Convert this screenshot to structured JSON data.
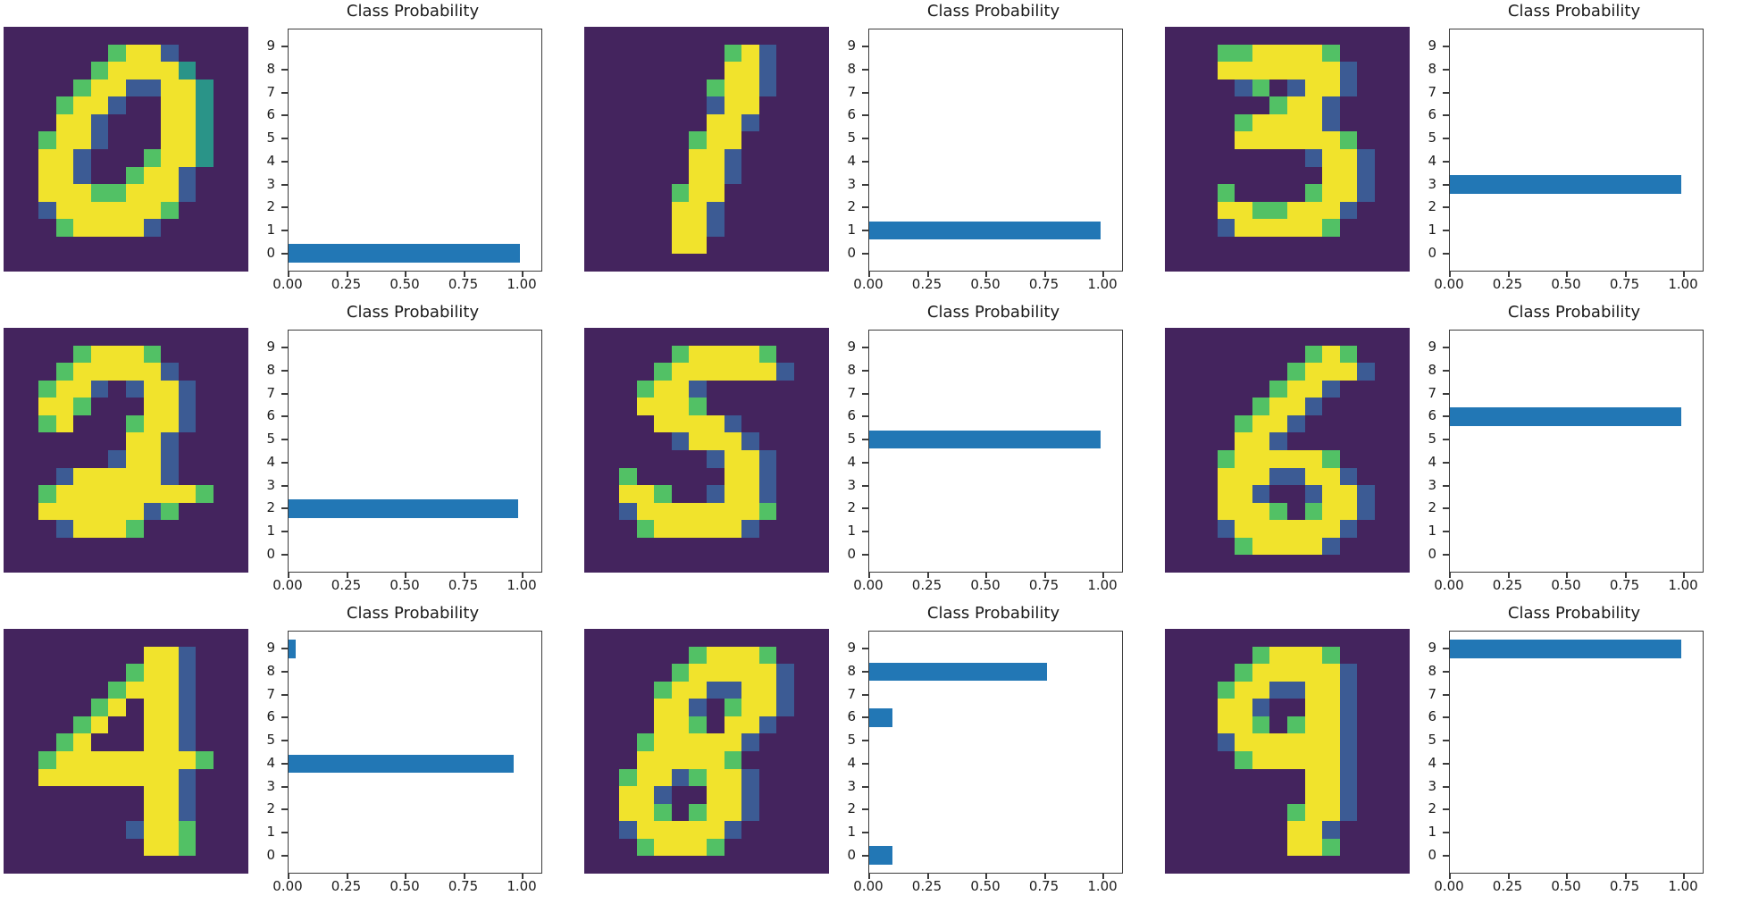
{
  "figure": {
    "background": "#ffffff",
    "bar_color": "#2277b5",
    "spine_color": "#3c3c3c",
    "text_color": "#1b1b1b",
    "digit_palette": {
      ".": "#44245e",
      "y": "#f1e32c",
      "g": "#52c165",
      "t": "#2a9488",
      "b": "#3c5b94"
    }
  },
  "axes": {
    "title": "Class Probability",
    "yticks": [
      "9",
      "8",
      "7",
      "6",
      "5",
      "4",
      "3",
      "2",
      "1",
      "0"
    ],
    "xtick_labels": [
      "0.00",
      "0.25",
      "0.50",
      "0.75",
      "1.00"
    ],
    "xtick_values": [
      0,
      0.25,
      0.5,
      0.75,
      1.0
    ],
    "xlim": [
      0,
      1.08
    ],
    "ylim": [
      -0.75,
      9.75
    ],
    "grid": false,
    "legend": "none"
  },
  "chart_data": [
    {
      "type": "barh",
      "title": "Class Probability",
      "digit": "0",
      "categories": [
        0,
        1,
        2,
        3,
        4,
        5,
        6,
        7,
        8,
        9
      ],
      "values": [
        0.99,
        0,
        0,
        0,
        0,
        0,
        0,
        0,
        0,
        0
      ],
      "bitmap": [
        "..............",
        "......gyyb....",
        ".....gyyyyt...",
        "....gyybbyyt..",
        "...gyyb..yyt..",
        "...yyb...yyt..",
        "..gyyb...yyt..",
        "..yyb...gyyt..",
        "..yyb..gyyb...",
        "..yyyggyyyb...",
        "..byyyyyyg....",
        "...gyyyyb.....",
        "..............",
        ".............."
      ]
    },
    {
      "type": "barh",
      "title": "Class Probability",
      "digit": "1",
      "categories": [
        0,
        1,
        2,
        3,
        4,
        5,
        6,
        7,
        8,
        9
      ],
      "values": [
        0,
        0.99,
        0,
        0,
        0,
        0,
        0,
        0,
        0,
        0
      ],
      "bitmap": [
        "..............",
        "........gyb...",
        "........yyb...",
        ".......gyyb...",
        ".......byy....",
        ".......yyb....",
        "......gyy.....",
        "......yyb.....",
        "......yyb.....",
        ".....gyy......",
        ".....yyb......",
        ".....yyb......",
        ".....yy.......",
        ".............."
      ]
    },
    {
      "type": "barh",
      "title": "Class Probability",
      "digit": "3",
      "categories": [
        0,
        1,
        2,
        3,
        4,
        5,
        6,
        7,
        8,
        9
      ],
      "values": [
        0,
        0,
        0,
        0.99,
        0,
        0,
        0,
        0,
        0,
        0
      ],
      "bitmap": [
        "..............",
        "...ggyyyyg....",
        "...yyyyyyyb...",
        "....bg.byyb...",
        "......gyyb....",
        "....gyyyyb....",
        "....yyyyyyg...",
        "........byyb..",
        ".........yyb..",
        "...g....gyyb..",
        "...yyggyyyb...",
        "...byyyyyg....",
        "..............",
        ".............."
      ]
    },
    {
      "type": "barh",
      "title": "Class Probability",
      "digit": "2",
      "categories": [
        0,
        1,
        2,
        3,
        4,
        5,
        6,
        7,
        8,
        9
      ],
      "values": [
        0,
        0,
        0.98,
        0,
        0,
        0,
        0,
        0,
        0,
        0
      ],
      "bitmap": [
        "..............",
        "....gyyyg.....",
        "...gyyyyyb....",
        "..gyyb.byyb...",
        "..yyg...yyb...",
        "..gy...gyyb...",
        ".......yyb....",
        "......byyb....",
        "...byyyyyb....",
        "..gyyyyyyyyg..",
        "..yyyyyybg....",
        "...byyyg......",
        "..............",
        ".............."
      ]
    },
    {
      "type": "barh",
      "title": "Class Probability",
      "digit": "5",
      "categories": [
        0,
        1,
        2,
        3,
        4,
        5,
        6,
        7,
        8,
        9
      ],
      "values": [
        0,
        0,
        0,
        0,
        0,
        0.99,
        0,
        0,
        0,
        0
      ],
      "bitmap": [
        "..............",
        ".....gyyyyg...",
        "....gyyyyyyb..",
        "...gyyb.......",
        "...yyyg.......",
        "....yyyyb.....",
        ".....byyyb....",
        ".......byyb...",
        "..g.....yyb...",
        "..yyg..byyb...",
        "..byyyyyyyg...",
        "...gyyyyyb....",
        "..............",
        ".............."
      ]
    },
    {
      "type": "barh",
      "title": "Class Probability",
      "digit": "6",
      "categories": [
        0,
        1,
        2,
        3,
        4,
        5,
        6,
        7,
        8,
        9
      ],
      "values": [
        0,
        0,
        0,
        0,
        0,
        0,
        0.99,
        0,
        0,
        0
      ],
      "bitmap": [
        "..............",
        "........gyg...",
        ".......gyyyb..",
        "......gyyb....",
        ".....gyyb.....",
        "....gyyb......",
        "....yyb.......",
        "...gyyyyyg....",
        "...yyybbyyb...",
        "...yyb..byyb..",
        "...yyyg.gyyb..",
        "...byyyyyyb...",
        "....gyyyyb....",
        ".............."
      ]
    },
    {
      "type": "barh",
      "title": "Class Probability",
      "digit": "4",
      "categories": [
        0,
        1,
        2,
        3,
        4,
        5,
        6,
        7,
        8,
        9
      ],
      "values": [
        0,
        0,
        0,
        0,
        0.96,
        0,
        0,
        0,
        0,
        0.03
      ],
      "bitmap": [
        "..............",
        "........yyb...",
        ".......gyyb...",
        "......gyyyb...",
        ".....gy.yyb...",
        "....gy..yyb...",
        "...gy...yyb...",
        "..gyyyyyyyyg..",
        "..yyyyyyyyb...",
        "........yyb...",
        "........yyb...",
        ".......byyg...",
        "........yyg...",
        ".............."
      ]
    },
    {
      "type": "barh",
      "title": "Class Probability",
      "digit": "8",
      "categories": [
        0,
        1,
        2,
        3,
        4,
        5,
        6,
        7,
        8,
        9
      ],
      "values": [
        0.1,
        0,
        0,
        0,
        0,
        0,
        0.1,
        0,
        0.76,
        0
      ],
      "bitmap": [
        "..............",
        "......gyyyg...",
        ".....gyyyyyb..",
        "....gyybbyyb..",
        "....yyb.gyyb..",
        "....yyg.yyb...",
        "...gyyyyyb....",
        "...yyyyyg.....",
        "..gyybgyyb....",
        "..yyb..yyb....",
        "..yyg.gyyb....",
        "..byyyyyb.....",
        "...gyyyg......",
        ".............."
      ]
    },
    {
      "type": "barh",
      "title": "Class Probability",
      "digit": "9",
      "categories": [
        0,
        1,
        2,
        3,
        4,
        5,
        6,
        7,
        8,
        9
      ],
      "values": [
        0,
        0,
        0,
        0,
        0,
        0,
        0,
        0,
        0,
        0.99
      ],
      "bitmap": [
        "..............",
        ".....gyyyg....",
        "....gyyyyyb...",
        "...gyybbyyb...",
        "...yyb..yyb...",
        "...yyg.gyyb...",
        "...byyyyyyb...",
        "....gyyyyyb...",
        "........yyb...",
        "........yyb...",
        ".......gyyb...",
        ".......yyb....",
        ".......yyg....",
        ".............."
      ]
    }
  ]
}
